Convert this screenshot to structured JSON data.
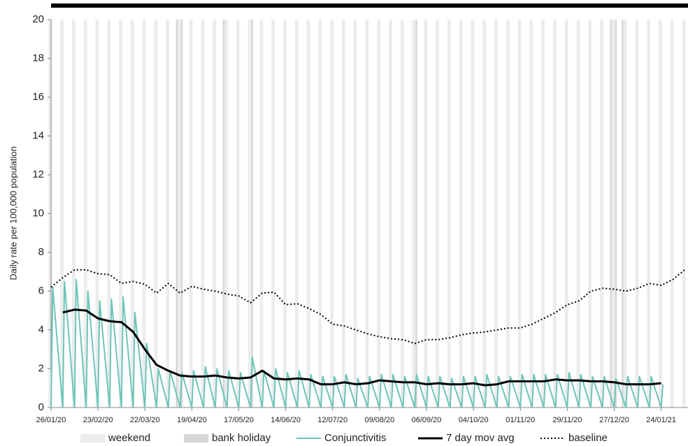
{
  "chart_data": {
    "type": "line",
    "y_label": "Daily rate per 100,000 population",
    "ylim": [
      0,
      20
    ],
    "yticks": [
      0,
      2,
      4,
      6,
      8,
      10,
      12,
      14,
      16,
      18,
      20
    ],
    "xlim": [
      "26/01/20",
      "09/02/21"
    ],
    "xticks": [
      "26/01/20",
      "23/02/20",
      "22/03/20",
      "19/04/20",
      "17/05/20",
      "14/06/20",
      "12/07/20",
      "09/08/20",
      "06/09/20",
      "04/10/20",
      "01/11/20",
      "29/11/20",
      "27/12/20",
      "24/01/21"
    ],
    "weekend_label": "weekend",
    "weekend_color": "#ececec",
    "bank_holiday_label": "bank holiday",
    "bank_holiday_color": "#d6d6d6",
    "bank_holidays": [
      "10/04/20",
      "13/04/20",
      "08/05/20",
      "25/05/20",
      "31/08/20",
      "25/12/20",
      "28/12/20",
      "01/01/21"
    ],
    "x": [
      "26/01/20",
      "02/02/20",
      "09/02/20",
      "16/02/20",
      "23/02/20",
      "01/03/20",
      "08/03/20",
      "15/03/20",
      "22/03/20",
      "29/03/20",
      "05/04/20",
      "12/04/20",
      "19/04/20",
      "26/04/20",
      "03/05/20",
      "10/05/20",
      "17/05/20",
      "24/05/20",
      "31/05/20",
      "07/06/20",
      "14/06/20",
      "21/06/20",
      "28/06/20",
      "05/07/20",
      "12/07/20",
      "19/07/20",
      "26/07/20",
      "02/08/20",
      "09/08/20",
      "16/08/20",
      "23/08/20",
      "30/08/20",
      "06/09/20",
      "13/09/20",
      "20/09/20",
      "27/09/20",
      "04/10/20",
      "11/10/20",
      "18/10/20",
      "25/10/20",
      "01/11/20",
      "08/11/20",
      "15/11/20",
      "22/11/20",
      "29/11/20",
      "06/12/20",
      "13/12/20",
      "20/12/20",
      "27/12/20",
      "03/01/21",
      "10/01/21",
      "17/01/21",
      "24/01/21",
      "31/01/21",
      "07/02/21"
    ],
    "series": [
      {
        "name": "Conjunctivitis",
        "color": "#6cc5b8",
        "style": "solid",
        "width": 2,
        "x": [
          "26/01/20",
          "27/01/20",
          "02/02/20",
          "03/02/20",
          "09/02/20",
          "10/02/20",
          "16/02/20",
          "17/02/20",
          "23/02/20",
          "24/02/20",
          "01/03/20",
          "02/03/20",
          "08/03/20",
          "09/03/20",
          "15/03/20",
          "16/03/20",
          "22/03/20",
          "23/03/20",
          "29/03/20",
          "30/03/20",
          "05/04/20",
          "06/04/20",
          "12/04/20",
          "13/04/20",
          "19/04/20",
          "20/04/20",
          "26/04/20",
          "27/04/20",
          "03/05/20",
          "04/05/20",
          "10/05/20",
          "11/05/20",
          "17/05/20",
          "18/05/20",
          "24/05/20",
          "25/05/20",
          "31/05/20",
          "01/06/20",
          "07/06/20",
          "08/06/20",
          "14/06/20",
          "15/06/20",
          "21/06/20",
          "22/06/20",
          "28/06/20",
          "29/06/20",
          "05/07/20",
          "06/07/20",
          "12/07/20",
          "13/07/20",
          "19/07/20",
          "20/07/20",
          "26/07/20",
          "27/07/20",
          "02/08/20",
          "03/08/20",
          "09/08/20",
          "10/08/20",
          "16/08/20",
          "17/08/20",
          "23/08/20",
          "24/08/20",
          "30/08/20",
          "31/08/20",
          "06/09/20",
          "07/09/20",
          "13/09/20",
          "14/09/20",
          "20/09/20",
          "21/09/20",
          "27/09/20",
          "28/09/20",
          "04/10/20",
          "05/10/20",
          "11/10/20",
          "12/10/20",
          "18/10/20",
          "19/10/20",
          "25/10/20",
          "26/10/20",
          "01/11/20",
          "02/11/20",
          "08/11/20",
          "09/11/20",
          "15/11/20",
          "16/11/20",
          "22/11/20",
          "23/11/20",
          "29/11/20",
          "30/11/20",
          "06/12/20",
          "07/12/20",
          "13/12/20",
          "14/12/20",
          "20/12/20",
          "21/12/20",
          "27/12/20",
          "28/12/20",
          "03/01/21",
          "04/01/21",
          "10/01/21",
          "11/01/21",
          "17/01/21",
          "18/01/21",
          "24/01/21",
          "25/01/21"
        ],
        "values": [
          0,
          6.2,
          0,
          6.5,
          0,
          6.6,
          0,
          6.0,
          0,
          5.5,
          0,
          5.6,
          0,
          5.7,
          0,
          4.9,
          0,
          3.3,
          0,
          2.0,
          0,
          1.9,
          0,
          1.8,
          0,
          1.9,
          0,
          2.1,
          0,
          2.0,
          0,
          1.9,
          0,
          1.8,
          0,
          2.6,
          0,
          1.9,
          0,
          2.0,
          0,
          1.8,
          0,
          1.9,
          0,
          1.7,
          0,
          1.6,
          0,
          1.6,
          0,
          1.7,
          0,
          1.5,
          0,
          1.6,
          0,
          1.7,
          0,
          1.7,
          0,
          1.6,
          0,
          1.7,
          0,
          1.6,
          0,
          1.6,
          0,
          1.5,
          0,
          1.6,
          0,
          1.6,
          0,
          1.7,
          0,
          1.6,
          0,
          1.6,
          0,
          1.7,
          0,
          1.7,
          0,
          1.7,
          0,
          1.7,
          0,
          1.8,
          0,
          1.7,
          0,
          1.6,
          0,
          1.6,
          0,
          1.5,
          0,
          1.6,
          0,
          1.6,
          0,
          1.6,
          0,
          1.2
        ]
      },
      {
        "name": "7 day mov avg",
        "color": "#000000",
        "style": "solid",
        "width": 3,
        "values": [
          null,
          4.9,
          5.05,
          5.0,
          4.6,
          4.45,
          4.4,
          3.9,
          3.0,
          2.2,
          1.9,
          1.65,
          1.6,
          1.6,
          1.65,
          1.55,
          1.5,
          1.55,
          1.9,
          1.5,
          1.45,
          1.5,
          1.45,
          1.2,
          1.2,
          1.3,
          1.2,
          1.25,
          1.4,
          1.35,
          1.3,
          1.3,
          1.2,
          1.25,
          1.2,
          1.2,
          1.25,
          1.15,
          1.2,
          1.35,
          1.35,
          1.35,
          1.35,
          1.45,
          1.4,
          1.4,
          1.35,
          1.35,
          1.3,
          1.2,
          1.2,
          1.2,
          1.25,
          null,
          null
        ]
      },
      {
        "name": "baseline",
        "color": "#000000",
        "style": "dotted",
        "width": 2,
        "values": [
          6.2,
          6.7,
          7.1,
          7.1,
          6.9,
          6.85,
          6.4,
          6.5,
          6.35,
          5.9,
          6.4,
          5.9,
          6.25,
          6.1,
          6.0,
          5.85,
          5.75,
          5.4,
          5.9,
          5.95,
          5.3,
          5.35,
          5.1,
          4.8,
          4.3,
          4.2,
          4.0,
          3.8,
          3.65,
          3.55,
          3.5,
          3.3,
          3.5,
          3.5,
          3.6,
          3.75,
          3.85,
          3.9,
          4.0,
          4.1,
          4.1,
          4.3,
          4.6,
          4.9,
          5.3,
          5.5,
          6.0,
          6.15,
          6.1,
          6.0,
          6.15,
          6.4,
          6.3,
          6.6,
          7.1
        ]
      }
    ]
  }
}
